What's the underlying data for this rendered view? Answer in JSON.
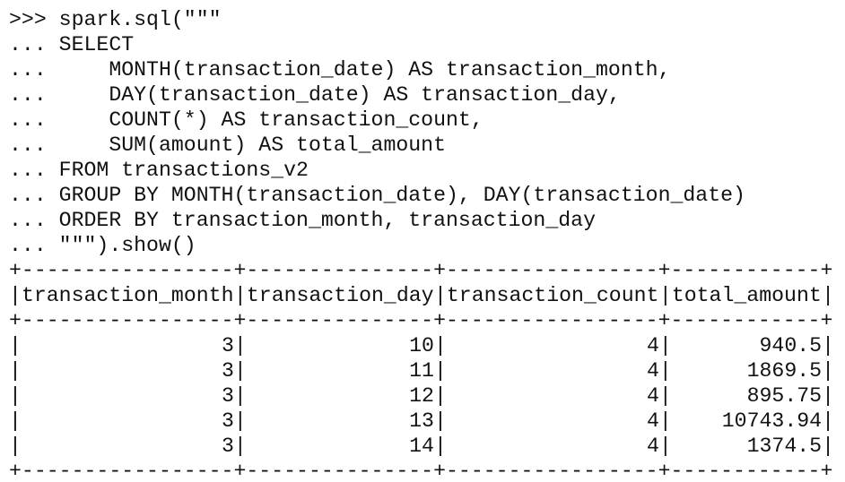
{
  "terminal": {
    "lines": [
      ">>> spark.sql(\"\"\"",
      "... SELECT",
      "...     MONTH(transaction_date) AS transaction_month,",
      "...     DAY(transaction_date) AS transaction_day,",
      "...     COUNT(*) AS transaction_count,",
      "...     SUM(amount) AS total_amount",
      "... FROM transactions_v2",
      "... GROUP BY MONTH(transaction_date), DAY(transaction_date)",
      "... ORDER BY transaction_month, transaction_day",
      "... \"\"\").show()"
    ],
    "table": {
      "border": "+-----------------+---------------+-----------------+------------+",
      "separator": "|",
      "header": [
        "transaction_month",
        "transaction_day",
        "transaction_count",
        "total_amount"
      ],
      "rows": [
        [
          3,
          10,
          4,
          940.5
        ],
        [
          3,
          11,
          4,
          1869.5
        ],
        [
          3,
          12,
          4,
          895.75
        ],
        [
          3,
          13,
          4,
          10743.94
        ],
        [
          3,
          14,
          4,
          1374.5
        ]
      ]
    }
  }
}
